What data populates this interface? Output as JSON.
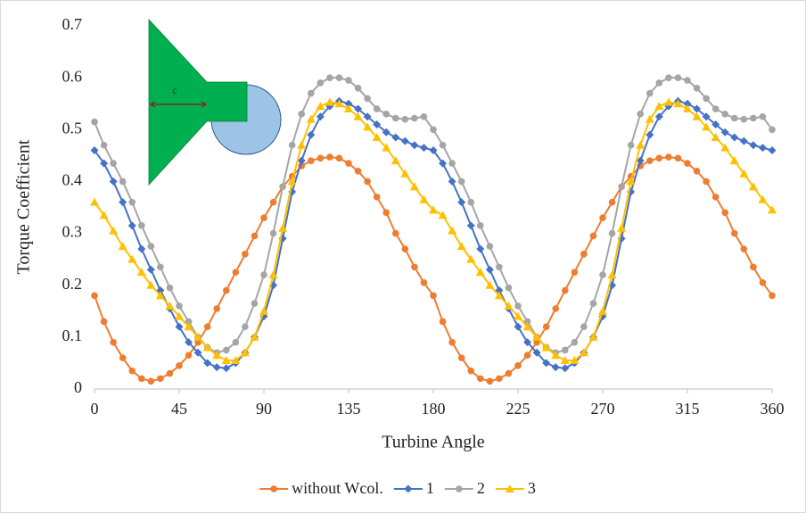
{
  "chart_data": {
    "type": "line",
    "xlabel": "Turbine Angle",
    "ylabel": "Torque Coefficient",
    "inset_label": "c",
    "x": [
      0,
      5,
      10,
      15,
      20,
      25,
      30,
      35,
      40,
      45,
      50,
      55,
      60,
      65,
      70,
      75,
      80,
      85,
      90,
      95,
      100,
      105,
      110,
      115,
      120,
      125,
      130,
      135,
      140,
      145,
      150,
      155,
      160,
      165,
      170,
      175,
      180,
      185,
      190,
      195,
      200,
      205,
      210,
      215,
      220,
      225,
      230,
      235,
      240,
      245,
      250,
      255,
      260,
      265,
      270,
      275,
      280,
      285,
      290,
      295,
      300,
      305,
      310,
      315,
      320,
      325,
      330,
      335,
      340,
      345,
      350,
      355,
      360
    ],
    "xlim": [
      0,
      360
    ],
    "xticks": [
      0,
      45,
      90,
      135,
      180,
      225,
      270,
      315,
      360
    ],
    "ylim": [
      0,
      0.7
    ],
    "yticks": [
      0,
      0.1,
      0.2,
      0.3,
      0.4,
      0.5,
      0.6,
      0.7
    ],
    "legend": "bottom",
    "series": [
      {
        "name": "without Wcol.",
        "color": "#ED7D31",
        "marker": "circle",
        "values": [
          0.18,
          0.13,
          0.09,
          0.06,
          0.035,
          0.02,
          0.015,
          0.02,
          0.03,
          0.045,
          0.065,
          0.09,
          0.12,
          0.155,
          0.19,
          0.225,
          0.26,
          0.295,
          0.33,
          0.36,
          0.39,
          0.41,
          0.43,
          0.44,
          0.445,
          0.447,
          0.445,
          0.435,
          0.42,
          0.4,
          0.37,
          0.34,
          0.3,
          0.27,
          0.235,
          0.205,
          0.18,
          0.13,
          0.09,
          0.06,
          0.035,
          0.02,
          0.015,
          0.02,
          0.03,
          0.045,
          0.065,
          0.09,
          0.12,
          0.155,
          0.19,
          0.225,
          0.26,
          0.295,
          0.33,
          0.36,
          0.39,
          0.41,
          0.43,
          0.44,
          0.445,
          0.447,
          0.445,
          0.435,
          0.42,
          0.4,
          0.37,
          0.34,
          0.3,
          0.27,
          0.235,
          0.205,
          0.18
        ]
      },
      {
        "name": "1",
        "color": "#4472C4",
        "marker": "diamond",
        "values": [
          0.46,
          0.435,
          0.4,
          0.36,
          0.315,
          0.27,
          0.23,
          0.19,
          0.155,
          0.12,
          0.09,
          0.07,
          0.05,
          0.042,
          0.04,
          0.05,
          0.07,
          0.1,
          0.14,
          0.2,
          0.29,
          0.38,
          0.44,
          0.49,
          0.525,
          0.545,
          0.555,
          0.55,
          0.54,
          0.525,
          0.51,
          0.495,
          0.485,
          0.478,
          0.47,
          0.465,
          0.46,
          0.435,
          0.4,
          0.36,
          0.315,
          0.27,
          0.23,
          0.19,
          0.155,
          0.12,
          0.09,
          0.07,
          0.05,
          0.042,
          0.04,
          0.05,
          0.07,
          0.1,
          0.14,
          0.2,
          0.29,
          0.38,
          0.44,
          0.49,
          0.525,
          0.545,
          0.555,
          0.55,
          0.54,
          0.525,
          0.51,
          0.495,
          0.485,
          0.478,
          0.47,
          0.465,
          0.46
        ]
      },
      {
        "name": "2",
        "color": "#A5A5A5",
        "marker": "circle",
        "values": [
          0.515,
          0.47,
          0.435,
          0.4,
          0.36,
          0.315,
          0.275,
          0.235,
          0.195,
          0.16,
          0.13,
          0.1,
          0.08,
          0.07,
          0.075,
          0.09,
          0.12,
          0.165,
          0.22,
          0.3,
          0.39,
          0.47,
          0.53,
          0.57,
          0.59,
          0.6,
          0.6,
          0.595,
          0.58,
          0.56,
          0.54,
          0.53,
          0.522,
          0.52,
          0.522,
          0.525,
          0.5,
          0.47,
          0.435,
          0.4,
          0.36,
          0.315,
          0.275,
          0.235,
          0.195,
          0.16,
          0.13,
          0.1,
          0.08,
          0.07,
          0.075,
          0.09,
          0.12,
          0.165,
          0.22,
          0.3,
          0.39,
          0.47,
          0.53,
          0.57,
          0.59,
          0.6,
          0.6,
          0.595,
          0.58,
          0.56,
          0.54,
          0.53,
          0.522,
          0.52,
          0.522,
          0.525,
          0.5
        ]
      },
      {
        "name": "3",
        "color": "#FFC000",
        "marker": "triangle",
        "values": [
          0.36,
          0.335,
          0.305,
          0.275,
          0.25,
          0.225,
          0.2,
          0.18,
          0.16,
          0.14,
          0.12,
          0.1,
          0.08,
          0.065,
          0.055,
          0.055,
          0.07,
          0.1,
          0.15,
          0.22,
          0.31,
          0.4,
          0.47,
          0.52,
          0.545,
          0.553,
          0.55,
          0.54,
          0.525,
          0.505,
          0.485,
          0.465,
          0.44,
          0.415,
          0.39,
          0.365,
          0.345,
          0.335,
          0.305,
          0.275,
          0.25,
          0.225,
          0.2,
          0.18,
          0.16,
          0.14,
          0.12,
          0.1,
          0.08,
          0.065,
          0.055,
          0.055,
          0.07,
          0.1,
          0.15,
          0.22,
          0.31,
          0.4,
          0.47,
          0.52,
          0.545,
          0.553,
          0.55,
          0.54,
          0.525,
          0.505,
          0.485,
          0.465,
          0.44,
          0.415,
          0.39,
          0.365,
          0.345
        ]
      }
    ]
  }
}
